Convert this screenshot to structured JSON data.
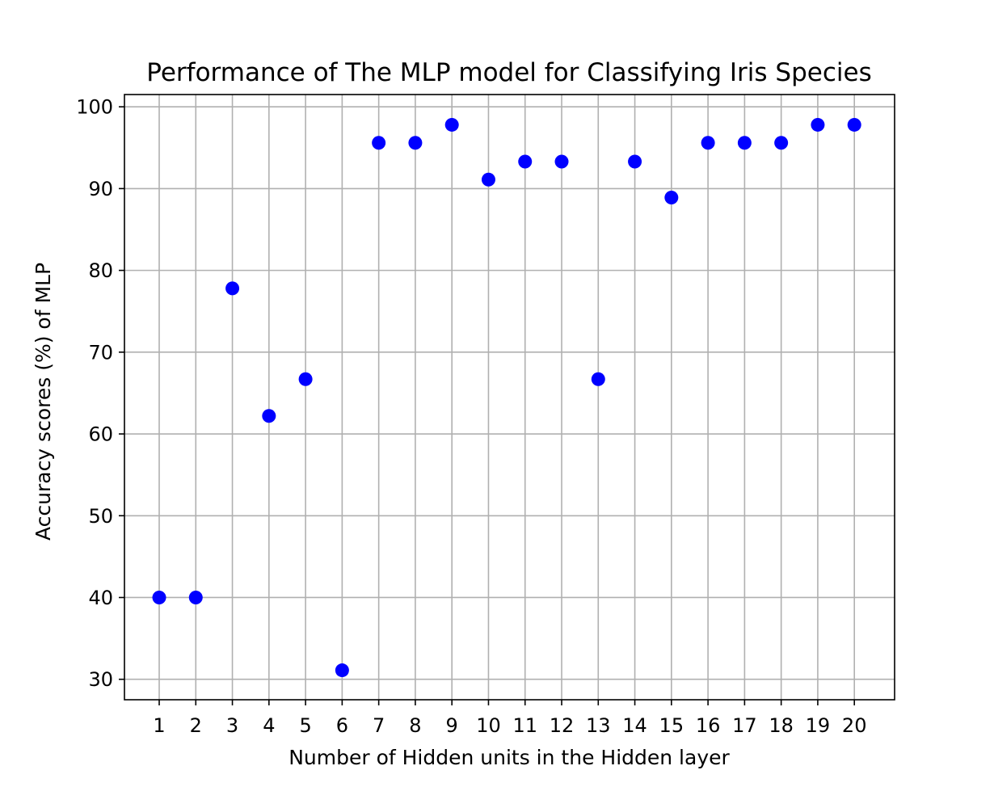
{
  "chart_data": {
    "type": "scatter",
    "title": "Performance of The MLP model for Classifying Iris Species",
    "xlabel": "Number of Hidden units in the Hidden layer",
    "ylabel": "Accuracy scores (%) of MLP",
    "x": [
      1,
      2,
      3,
      4,
      5,
      6,
      7,
      8,
      9,
      10,
      11,
      12,
      13,
      14,
      15,
      16,
      17,
      18,
      19,
      20
    ],
    "y": [
      40.0,
      40.0,
      77.8,
      62.2,
      66.7,
      31.1,
      95.6,
      95.6,
      97.8,
      91.1,
      93.3,
      93.3,
      66.7,
      93.3,
      88.9,
      95.6,
      95.6,
      95.6,
      97.8,
      97.8
    ],
    "xticks": [
      1,
      2,
      3,
      4,
      5,
      6,
      7,
      8,
      9,
      10,
      11,
      12,
      13,
      14,
      15,
      16,
      17,
      18,
      19,
      20
    ],
    "yticks": [
      30,
      40,
      50,
      60,
      70,
      80,
      90,
      100
    ],
    "xlim": [
      0.05,
      21.1
    ],
    "ylim": [
      27.5,
      101.5
    ],
    "grid": true,
    "marker_color": "#0000ff"
  }
}
